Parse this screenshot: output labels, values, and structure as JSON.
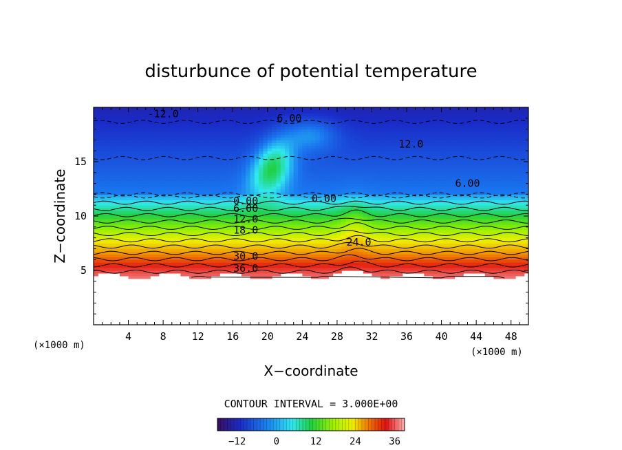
{
  "chart_data": {
    "type": "heatmap",
    "title": "disturbunce of potential temperature",
    "xlabel": "X−coordinate",
    "ylabel": "Z−coordinate",
    "x_unit": "(×1000 m)",
    "z_unit": "(×1000 m)",
    "xlim": [
      0,
      50
    ],
    "zlim": [
      0,
      20
    ],
    "x_ticks": [
      4,
      8,
      12,
      16,
      20,
      24,
      28,
      32,
      36,
      40,
      44,
      48
    ],
    "z_ticks": [
      5,
      10,
      15
    ],
    "contour_interval_text": "CONTOUR INTERVAL = 3.000E+00",
    "contour_interval": 3.0,
    "levels_range": [
      -18,
      39
    ],
    "contour_labels": [
      {
        "text": "-12.0",
        "x": 8.0,
        "z": 19.4
      },
      {
        "text": "6.00",
        "x": 22.5,
        "z": 19.0
      },
      {
        "text": "12.0",
        "x": 36.5,
        "z": 16.6
      },
      {
        "text": "6.00",
        "x": 43.0,
        "z": 13.0
      },
      {
        "text": "0.00",
        "x": 26.5,
        "z": 11.6
      },
      {
        "text": "0.00",
        "x": 17.5,
        "z": 11.4
      },
      {
        "text": "6.00",
        "x": 17.5,
        "z": 10.7
      },
      {
        "text": "12.0",
        "x": 17.5,
        "z": 9.7
      },
      {
        "text": "18.0",
        "x": 17.5,
        "z": 8.7
      },
      {
        "text": "24.0",
        "x": 30.5,
        "z": 7.6
      },
      {
        "text": "30.0",
        "x": 17.5,
        "z": 6.3
      },
      {
        "text": "36.0",
        "x": 17.5,
        "z": 5.2
      }
    ],
    "colorbar": {
      "min": -18,
      "max": 39,
      "tick_labels": [
        "−12",
        "0",
        "12",
        "24",
        "36"
      ],
      "tick_values": [
        -12,
        0,
        12,
        24,
        36
      ]
    },
    "colors": {
      "low": "#1c1c8f",
      "mid_cyan": "#30e8f0",
      "mid_green": "#20d040",
      "mid_yellow": "#f0f000",
      "high": "#e01010",
      "top": "#ffb0b0"
    },
    "ground_level_z": 4.5,
    "grid": false
  }
}
